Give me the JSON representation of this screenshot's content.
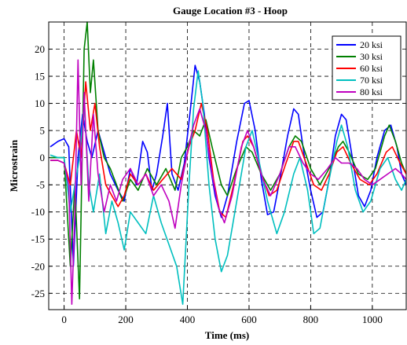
{
  "chart_data": {
    "type": "line",
    "title": "Gauge Location #3 - Hoop",
    "xlabel": "Time (ms)",
    "ylabel": "Microstrain",
    "xlim": [
      -50,
      1110
    ],
    "ylim": [
      -28,
      25
    ],
    "xticks": [
      0,
      200,
      400,
      600,
      800,
      1000
    ],
    "yticks": [
      -25,
      -20,
      -15,
      -10,
      -5,
      0,
      5,
      10,
      15,
      20
    ],
    "grid": true,
    "legend_position": "top-right",
    "series": [
      {
        "name": "20 ksi",
        "color": "#0000ff",
        "points": [
          [
            -45,
            2
          ],
          [
            -20,
            3
          ],
          [
            0,
            3.5
          ],
          [
            15,
            2
          ],
          [
            30,
            -20
          ],
          [
            45,
            0
          ],
          [
            60,
            8
          ],
          [
            75,
            3
          ],
          [
            90,
            0
          ],
          [
            110,
            5
          ],
          [
            130,
            1
          ],
          [
            150,
            -3
          ],
          [
            175,
            -6
          ],
          [
            195,
            -8
          ],
          [
            215,
            -2
          ],
          [
            235,
            -5
          ],
          [
            255,
            3
          ],
          [
            270,
            1
          ],
          [
            285,
            -6
          ],
          [
            300,
            -3
          ],
          [
            320,
            4
          ],
          [
            335,
            10
          ],
          [
            350,
            -3
          ],
          [
            370,
            -6
          ],
          [
            390,
            -1
          ],
          [
            410,
            9
          ],
          [
            425,
            17
          ],
          [
            440,
            14
          ],
          [
            455,
            8
          ],
          [
            470,
            0
          ],
          [
            490,
            -7
          ],
          [
            510,
            -11
          ],
          [
            530,
            -7
          ],
          [
            560,
            3
          ],
          [
            585,
            10
          ],
          [
            600,
            10.5
          ],
          [
            620,
            5
          ],
          [
            640,
            -4
          ],
          [
            660,
            -10.5
          ],
          [
            680,
            -10
          ],
          [
            700,
            -4
          ],
          [
            725,
            4
          ],
          [
            745,
            9
          ],
          [
            760,
            8
          ],
          [
            780,
            0
          ],
          [
            800,
            -6
          ],
          [
            820,
            -11
          ],
          [
            840,
            -10
          ],
          [
            860,
            -4
          ],
          [
            880,
            4
          ],
          [
            900,
            8
          ],
          [
            915,
            7
          ],
          [
            935,
            0
          ],
          [
            955,
            -7
          ],
          [
            975,
            -9
          ],
          [
            995,
            -6
          ],
          [
            1015,
            0
          ],
          [
            1040,
            5
          ],
          [
            1060,
            6
          ],
          [
            1080,
            2
          ],
          [
            1095,
            -3
          ],
          [
            1110,
            -5
          ]
        ]
      },
      {
        "name": "30 ksi",
        "color": "#008000",
        "points": [
          [
            -45,
            0
          ],
          [
            -20,
            0
          ],
          [
            0,
            0
          ],
          [
            20,
            -20
          ],
          [
            35,
            -5
          ],
          [
            50,
            -26
          ],
          [
            65,
            20
          ],
          [
            75,
            25
          ],
          [
            85,
            12
          ],
          [
            95,
            18
          ],
          [
            110,
            5
          ],
          [
            130,
            0
          ],
          [
            150,
            -2
          ],
          [
            170,
            -5
          ],
          [
            190,
            -8
          ],
          [
            215,
            -4
          ],
          [
            240,
            -6
          ],
          [
            270,
            -2
          ],
          [
            300,
            -5
          ],
          [
            330,
            -2
          ],
          [
            360,
            -6
          ],
          [
            380,
            0
          ],
          [
            400,
            2
          ],
          [
            420,
            5
          ],
          [
            440,
            4
          ],
          [
            460,
            7
          ],
          [
            480,
            2
          ],
          [
            510,
            -5
          ],
          [
            530,
            -7
          ],
          [
            560,
            -2
          ],
          [
            590,
            2
          ],
          [
            610,
            1
          ],
          [
            640,
            -3
          ],
          [
            670,
            -6
          ],
          [
            700,
            -3
          ],
          [
            730,
            2
          ],
          [
            750,
            4
          ],
          [
            770,
            3
          ],
          [
            800,
            -2
          ],
          [
            830,
            -5
          ],
          [
            860,
            -2
          ],
          [
            890,
            2
          ],
          [
            905,
            3
          ],
          [
            925,
            1
          ],
          [
            955,
            -3
          ],
          [
            985,
            -4
          ],
          [
            1010,
            -2
          ],
          [
            1040,
            4
          ],
          [
            1055,
            6
          ],
          [
            1075,
            3
          ],
          [
            1095,
            -1
          ],
          [
            1110,
            -3
          ]
        ]
      },
      {
        "name": "60 ksi",
        "color": "#ff0000",
        "points": [
          [
            -45,
            -0.5
          ],
          [
            -20,
            -0.5
          ],
          [
            0,
            -1
          ],
          [
            20,
            -5
          ],
          [
            40,
            5
          ],
          [
            55,
            0
          ],
          [
            70,
            14
          ],
          [
            85,
            5
          ],
          [
            100,
            10
          ],
          [
            115,
            2
          ],
          [
            135,
            -5
          ],
          [
            155,
            -7
          ],
          [
            175,
            -9
          ],
          [
            195,
            -7
          ],
          [
            215,
            -3
          ],
          [
            240,
            -5
          ],
          [
            265,
            -3
          ],
          [
            290,
            -6
          ],
          [
            320,
            -4
          ],
          [
            350,
            -2
          ],
          [
            380,
            -4
          ],
          [
            405,
            2
          ],
          [
            425,
            5
          ],
          [
            445,
            10
          ],
          [
            465,
            5
          ],
          [
            485,
            -4
          ],
          [
            505,
            -10
          ],
          [
            525,
            -11
          ],
          [
            550,
            -5
          ],
          [
            580,
            3
          ],
          [
            595,
            4
          ],
          [
            615,
            2
          ],
          [
            640,
            -3
          ],
          [
            665,
            -7
          ],
          [
            690,
            -6
          ],
          [
            720,
            -1
          ],
          [
            745,
            3
          ],
          [
            760,
            3
          ],
          [
            785,
            -1
          ],
          [
            810,
            -5
          ],
          [
            835,
            -6
          ],
          [
            860,
            -3
          ],
          [
            885,
            1
          ],
          [
            905,
            2
          ],
          [
            930,
            -1
          ],
          [
            960,
            -4
          ],
          [
            990,
            -5
          ],
          [
            1015,
            -3
          ],
          [
            1045,
            1
          ],
          [
            1065,
            2
          ],
          [
            1090,
            -1
          ],
          [
            1110,
            -3
          ]
        ]
      },
      {
        "name": "70 ksi",
        "color": "#00bfbf",
        "points": [
          [
            -45,
            0.5
          ],
          [
            -20,
            0
          ],
          [
            0,
            0
          ],
          [
            20,
            -10
          ],
          [
            35,
            -5
          ],
          [
            50,
            0
          ],
          [
            65,
            10
          ],
          [
            80,
            -5
          ],
          [
            95,
            -10
          ],
          [
            115,
            -3
          ],
          [
            135,
            -14
          ],
          [
            155,
            -8
          ],
          [
            175,
            -12
          ],
          [
            195,
            -17
          ],
          [
            215,
            -10
          ],
          [
            240,
            -12
          ],
          [
            265,
            -14
          ],
          [
            290,
            -7
          ],
          [
            315,
            -12
          ],
          [
            340,
            -16
          ],
          [
            365,
            -20
          ],
          [
            385,
            -27
          ],
          [
            405,
            -5
          ],
          [
            420,
            9
          ],
          [
            435,
            16
          ],
          [
            450,
            10
          ],
          [
            470,
            -5
          ],
          [
            490,
            -15
          ],
          [
            510,
            -21
          ],
          [
            530,
            -18
          ],
          [
            560,
            -8
          ],
          [
            590,
            2
          ],
          [
            610,
            5
          ],
          [
            630,
            0
          ],
          [
            660,
            -8
          ],
          [
            690,
            -14
          ],
          [
            715,
            -10
          ],
          [
            745,
            -3
          ],
          [
            765,
            0
          ],
          [
            790,
            -6
          ],
          [
            810,
            -14
          ],
          [
            830,
            -13
          ],
          [
            860,
            -4
          ],
          [
            885,
            3
          ],
          [
            900,
            6
          ],
          [
            920,
            2
          ],
          [
            945,
            -6
          ],
          [
            970,
            -10
          ],
          [
            995,
            -8
          ],
          [
            1025,
            -2
          ],
          [
            1050,
            0
          ],
          [
            1075,
            -4
          ],
          [
            1095,
            -6
          ],
          [
            1110,
            -4
          ]
        ]
      },
      {
        "name": "80 ksi",
        "color": "#bf00bf",
        "points": [
          [
            -45,
            -0.5
          ],
          [
            -20,
            -0.5
          ],
          [
            0,
            -1
          ],
          [
            15,
            -5
          ],
          [
            25,
            -27
          ],
          [
            35,
            -10
          ],
          [
            45,
            18
          ],
          [
            55,
            -5
          ],
          [
            65,
            12
          ],
          [
            80,
            -8
          ],
          [
            95,
            8
          ],
          [
            110,
            -3
          ],
          [
            130,
            -10
          ],
          [
            150,
            -5
          ],
          [
            170,
            -8
          ],
          [
            190,
            -4
          ],
          [
            215,
            -2
          ],
          [
            240,
            -5
          ],
          [
            265,
            -3
          ],
          [
            290,
            -7
          ],
          [
            315,
            -5
          ],
          [
            340,
            -8
          ],
          [
            360,
            -13
          ],
          [
            380,
            -5
          ],
          [
            400,
            1
          ],
          [
            420,
            6
          ],
          [
            440,
            9
          ],
          [
            460,
            5
          ],
          [
            480,
            -3
          ],
          [
            500,
            -9
          ],
          [
            520,
            -12
          ],
          [
            545,
            -7
          ],
          [
            575,
            2
          ],
          [
            595,
            5
          ],
          [
            615,
            2
          ],
          [
            645,
            -4
          ],
          [
            670,
            -7
          ],
          [
            700,
            -3
          ],
          [
            730,
            2
          ],
          [
            750,
            2
          ],
          [
            775,
            -1
          ],
          [
            800,
            -3
          ],
          [
            825,
            -4
          ],
          [
            855,
            -2
          ],
          [
            880,
            0
          ],
          [
            900,
            -1
          ],
          [
            925,
            -1
          ],
          [
            950,
            -2
          ],
          [
            975,
            -4
          ],
          [
            1000,
            -5
          ],
          [
            1025,
            -4
          ],
          [
            1050,
            -3
          ],
          [
            1075,
            -2
          ],
          [
            1095,
            -3
          ],
          [
            1110,
            -4
          ]
        ]
      }
    ]
  }
}
